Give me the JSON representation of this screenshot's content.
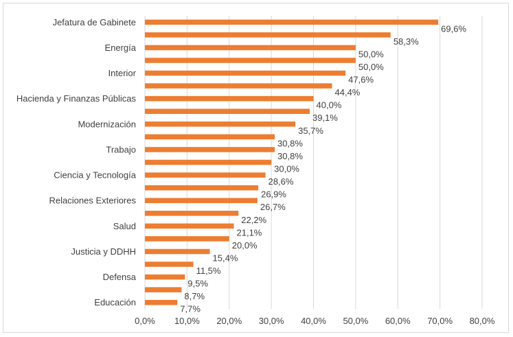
{
  "chart_data": {
    "type": "bar",
    "orientation": "horizontal",
    "categories": [
      "Jefatura de Gabinete",
      "",
      "Energía",
      "",
      "Interior",
      "",
      "Hacienda y Finanzas Públicas",
      "",
      "Modernización",
      "",
      "Trabajo",
      "",
      "Ciencia y Tecnología",
      "",
      "Relaciones Exteriores",
      "",
      "Salud",
      "",
      "Justicia y DDHH",
      "",
      "Defensa",
      "",
      "Educación"
    ],
    "values": [
      69.6,
      58.3,
      50.0,
      50.0,
      47.6,
      44.4,
      40.0,
      39.1,
      35.7,
      30.8,
      30.8,
      30.0,
      28.6,
      26.9,
      26.7,
      22.2,
      21.1,
      20.0,
      15.4,
      11.5,
      9.5,
      8.7,
      7.7
    ],
    "data_labels": [
      "69,6%",
      "58,3%",
      "50,0%",
      "50,0%",
      "47,6%",
      "44,4%",
      "40,0%",
      "39,1%",
      "35,7%",
      "30,8%",
      "30,8%",
      "30,0%",
      "28,6%",
      "26,9%",
      "26,7%",
      "22,2%",
      "21,1%",
      "20,0%",
      "15,4%",
      "11,5%",
      "9,5%",
      "8,7%",
      "7,7%"
    ],
    "x_ticks": [
      "0,0%",
      "10,0%",
      "20,0%",
      "30,0%",
      "40,0%",
      "50,0%",
      "60,0%",
      "70,0%",
      "80,0%"
    ],
    "xlim": [
      0,
      80
    ],
    "grid": true,
    "colors": {
      "bar": "#ed7d31",
      "grid": "#d9d9d9",
      "text": "#404040"
    },
    "title": "",
    "xlabel": "",
    "ylabel": ""
  }
}
